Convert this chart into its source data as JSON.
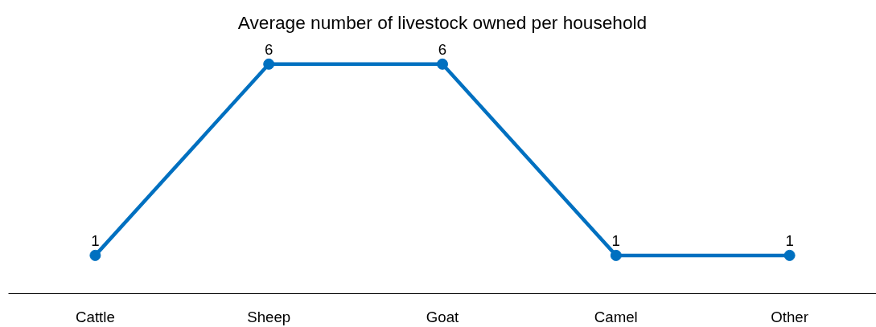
{
  "chart_data": {
    "type": "line",
    "title": "Average number of livestock owned per household",
    "categories": [
      "Cattle",
      "Sheep",
      "Goat",
      "Camel",
      "Other"
    ],
    "values": [
      1,
      6,
      6,
      1,
      1
    ],
    "color": "#0070c0",
    "data_labels": true,
    "marker": "circle",
    "line_style": "solid"
  }
}
